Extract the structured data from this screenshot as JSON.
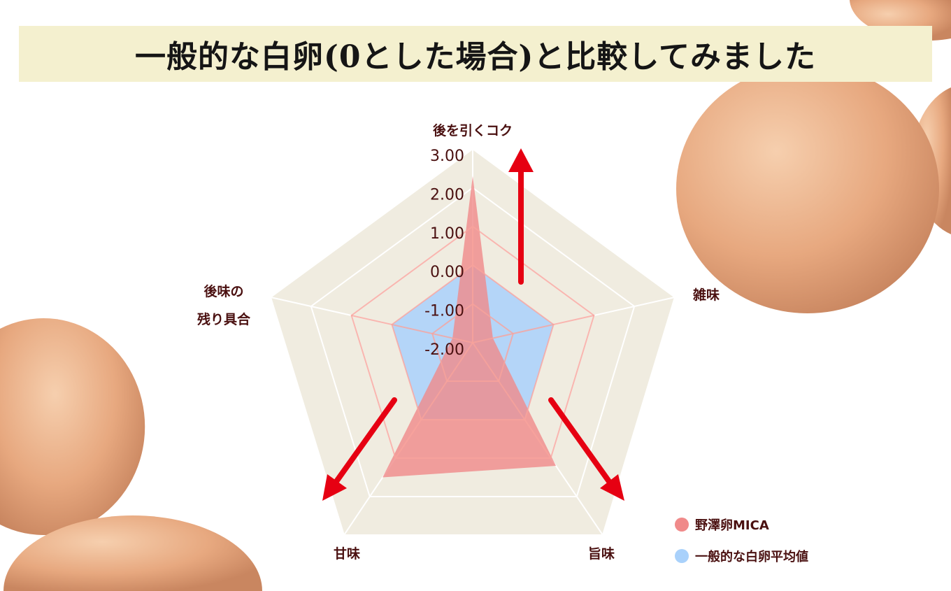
{
  "title": "一般的な白卵(0とした場合)と比較してみました",
  "chart_data": {
    "type": "radar",
    "title": "一般的な白卵(0とした場合)と比較してみました",
    "axes": [
      "後を引くコク",
      "雑味",
      "旨味",
      "甘味",
      "後味の残り具合"
    ],
    "axis_label_lines": [
      [
        "後を引くコク"
      ],
      [
        "雑味"
      ],
      [
        "旨味"
      ],
      [
        "甘味"
      ],
      [
        "後味の",
        "残り具合"
      ]
    ],
    "range": [
      -2,
      3
    ],
    "ticks": [
      "3.00",
      "2.00",
      "1.00",
      "0.00",
      "-1.00",
      "-2.00"
    ],
    "tick_values": [
      3,
      2,
      1,
      0,
      -1,
      -2
    ],
    "grid": true,
    "legend_position": "bottom-right",
    "series": [
      {
        "name": "野澤卵MICA",
        "values": [
          2.3,
          -1.5,
          1.2,
          1.5,
          -1.5
        ],
        "color": "#f08a8a"
      },
      {
        "name": "一般的な白卵平均値",
        "values": [
          0,
          0,
          0,
          0,
          0
        ],
        "color": "#a9d1fb"
      }
    ]
  },
  "colors": {
    "grid_fill": "#f0ece0",
    "arrow": "#e60012",
    "title_bg": "#f4f0cf",
    "text": "#4a1010"
  }
}
